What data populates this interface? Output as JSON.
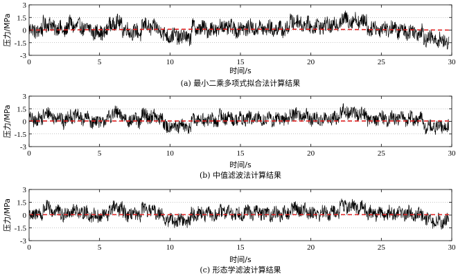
{
  "chart_data": [
    {
      "type": "line",
      "caption": "(a) 最小二乘多项式拟合法计算结果",
      "xlabel": "时间/s",
      "ylabel": "压力/MPa",
      "xlim": [
        0,
        30
      ],
      "ylim": [
        -3,
        3
      ],
      "x_ticks": [
        "0",
        "5",
        "10",
        "15",
        "20",
        "25",
        "30"
      ],
      "y_ticks": [
        "3",
        "1.5",
        "0",
        "-1.5",
        "-3"
      ],
      "grid": "horizontal-dotted",
      "series": [
        {
          "role": "measured-signal",
          "color": "#000000",
          "segments": [
            [
              0,
              0.0,
              1.0,
              -0.1
            ],
            [
              1.0,
              0.9,
              2.4,
              0.0
            ],
            [
              2.4,
              -0.3,
              3.0,
              0.9
            ],
            [
              3.0,
              0.6,
              4.5,
              0.0
            ],
            [
              4.5,
              -0.2,
              5.6,
              -0.3
            ],
            [
              5.6,
              0.7,
              6.6,
              0.9
            ],
            [
              6.6,
              0.1,
              8.0,
              -0.4
            ],
            [
              8.0,
              0.6,
              9.5,
              0.0
            ],
            [
              9.5,
              -0.6,
              11.5,
              -0.9
            ],
            [
              11.5,
              0.3,
              13.5,
              0.0
            ],
            [
              13.5,
              0.5,
              15.0,
              0.0
            ],
            [
              15.0,
              0.3,
              16.5,
              0.2
            ],
            [
              16.5,
              0.2,
              18.5,
              0.1
            ],
            [
              18.5,
              1.2,
              20.0,
              0.5
            ],
            [
              20.0,
              0.4,
              22.0,
              0.6
            ],
            [
              22.0,
              1.3,
              24.0,
              1.0
            ],
            [
              24.0,
              0.2,
              26.0,
              0.2
            ],
            [
              26.0,
              0.0,
              28.0,
              -0.3
            ],
            [
              28.0,
              -0.9,
              29.8,
              -1.4
            ]
          ],
          "amplitude": 0.9
        },
        {
          "role": "fitted-trend",
          "color": "#e02020",
          "style": "dashed",
          "x": [
            0,
            5,
            10,
            15,
            20,
            25,
            29.8
          ],
          "y": [
            0.0,
            0.05,
            0.1,
            0.1,
            0.1,
            0.05,
            0.0
          ]
        }
      ]
    },
    {
      "type": "line",
      "caption": "(b) 中值滤波法计算结果",
      "xlabel": "时间/s",
      "ylabel": "压力/MPa",
      "xlim": [
        0,
        30
      ],
      "ylim": [
        -3,
        3
      ],
      "x_ticks": [
        "0",
        "5",
        "10",
        "15",
        "20",
        "25",
        "30"
      ],
      "y_ticks": [
        "3",
        "1.5",
        "0",
        "-1.5",
        "-3"
      ],
      "grid": "horizontal-dotted",
      "series": [
        {
          "role": "measured-signal",
          "color": "#000000",
          "segments": [
            [
              0,
              0.2,
              1.0,
              0.2
            ],
            [
              1.0,
              1.0,
              2.4,
              0.3
            ],
            [
              2.4,
              -0.2,
              3.0,
              0.8
            ],
            [
              3.0,
              0.7,
              4.5,
              0.1
            ],
            [
              4.5,
              0.0,
              5.6,
              0.0
            ],
            [
              5.6,
              0.8,
              6.6,
              0.9
            ],
            [
              6.6,
              0.3,
              8.0,
              0.0
            ],
            [
              8.0,
              0.8,
              9.5,
              0.3
            ],
            [
              9.5,
              -0.5,
              11.5,
              -0.7
            ],
            [
              11.5,
              0.2,
              13.5,
              0.1
            ],
            [
              13.5,
              0.6,
              15.0,
              0.2
            ],
            [
              15.0,
              0.3,
              16.5,
              0.3
            ],
            [
              16.5,
              0.3,
              18.5,
              0.2
            ],
            [
              18.5,
              1.0,
              20.0,
              0.5
            ],
            [
              20.0,
              0.2,
              22.0,
              0.3
            ],
            [
              22.0,
              1.2,
              24.0,
              0.8
            ],
            [
              24.0,
              0.3,
              26.0,
              0.3
            ],
            [
              26.0,
              0.4,
              28.0,
              0.2
            ],
            [
              28.0,
              -0.6,
              29.8,
              -0.7
            ]
          ],
          "amplitude": 0.8
        },
        {
          "role": "fitted-trend",
          "color": "#e02020",
          "style": "dashed",
          "x": [
            0,
            5,
            10,
            15,
            20,
            25,
            29.8
          ],
          "y": [
            0.05,
            0.05,
            0.05,
            0.05,
            0.05,
            0.05,
            0.05
          ]
        }
      ]
    },
    {
      "type": "line",
      "caption": "(c) 形态学滤波计算结果",
      "xlabel": "时间/s",
      "ylabel": "压力/MPa",
      "xlim": [
        0,
        30
      ],
      "ylim": [
        -3,
        3
      ],
      "x_ticks": [
        "0",
        "5",
        "10",
        "15",
        "20",
        "25",
        "30"
      ],
      "y_ticks": [
        "3",
        "1.5",
        "0",
        "-1.5",
        "-3"
      ],
      "grid": "horizontal-dotted",
      "series": [
        {
          "role": "measured-signal",
          "color": "#000000",
          "segments": [
            [
              0,
              0.1,
              1.0,
              0.1
            ],
            [
              1.0,
              0.9,
              2.4,
              0.2
            ],
            [
              2.4,
              -0.2,
              3.0,
              0.7
            ],
            [
              3.0,
              0.6,
              4.5,
              0.0
            ],
            [
              4.5,
              -0.1,
              5.6,
              -0.1
            ],
            [
              5.6,
              0.7,
              6.6,
              0.8
            ],
            [
              6.6,
              0.2,
              8.0,
              -0.1
            ],
            [
              8.0,
              0.7,
              9.5,
              0.2
            ],
            [
              9.5,
              -0.5,
              11.5,
              -0.7
            ],
            [
              11.5,
              0.2,
              13.5,
              0.0
            ],
            [
              13.5,
              0.5,
              15.0,
              0.1
            ],
            [
              15.0,
              0.3,
              16.5,
              0.3
            ],
            [
              16.5,
              0.2,
              18.5,
              0.1
            ],
            [
              18.5,
              0.9,
              20.0,
              0.4
            ],
            [
              20.0,
              0.2,
              22.0,
              0.3
            ],
            [
              22.0,
              1.1,
              24.0,
              0.8
            ],
            [
              24.0,
              0.2,
              26.0,
              0.2
            ],
            [
              26.0,
              0.3,
              28.0,
              0.1
            ],
            [
              28.0,
              -0.6,
              29.8,
              -0.8
            ]
          ],
          "amplitude": 0.8
        },
        {
          "role": "fitted-trend",
          "color": "#e02020",
          "style": "dashed",
          "x": [
            0,
            5,
            10,
            15,
            20,
            25,
            29.8
          ],
          "y": [
            0.05,
            0.05,
            0.05,
            0.05,
            0.05,
            0.05,
            0.05
          ]
        }
      ]
    }
  ]
}
